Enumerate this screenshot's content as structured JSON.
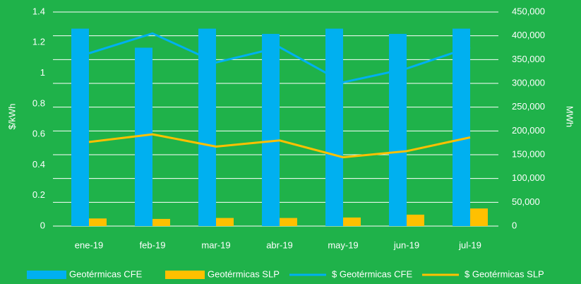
{
  "chart_data": {
    "type": "combo",
    "y_label": "$/kWh",
    "y2_label": "MWh",
    "categories": [
      "ene-19",
      "feb-19",
      "mar-19",
      "abr-19",
      "may-19",
      "jun-19",
      "jul-19"
    ],
    "series": [
      {
        "name": "Geotérmicas CFE",
        "type": "bar",
        "axis": "y2",
        "color": "#00b0f0",
        "values": [
          415000,
          375000,
          415000,
          404000,
          415000,
          404000,
          415000
        ]
      },
      {
        "name": "Geotérmicas SLP",
        "type": "bar",
        "axis": "y2",
        "color": "#ffc000",
        "values": [
          16000,
          15000,
          17000,
          17000,
          18000,
          24000,
          37000
        ]
      },
      {
        "name": "$ Geotérmicas CFE",
        "type": "line",
        "color": "#00b0f0",
        "values": [
          1.13,
          1.26,
          1.07,
          1.17,
          0.94,
          1.03,
          1.17
        ]
      },
      {
        "name": "$ Geotérmicas SLP",
        "type": "line",
        "color": "#ffc000",
        "values": [
          0.55,
          0.6,
          0.52,
          0.56,
          0.45,
          0.49,
          0.58
        ]
      }
    ],
    "ylim": [
      0,
      1.4
    ],
    "yticks": [
      0,
      0.2,
      0.4,
      0.6,
      0.8,
      1,
      1.2,
      1.4
    ],
    "y2lim": [
      0,
      450000
    ],
    "y2ticks": [
      0,
      {
        "value": 50000,
        "label": "50,000"
      },
      {
        "value": 100000,
        "label": "100,000"
      },
      {
        "value": 150000,
        "label": "150,000"
      },
      {
        "value": 200000,
        "label": "200,000"
      },
      {
        "value": 250000,
        "label": "250,000"
      },
      {
        "value": 300000,
        "label": "300,000"
      },
      {
        "value": 350000,
        "label": "350,000"
      },
      {
        "value": 400000,
        "label": "400,000"
      },
      {
        "value": 450000,
        "label": "450,000"
      }
    ],
    "grid": true,
    "legend": "bottom"
  }
}
